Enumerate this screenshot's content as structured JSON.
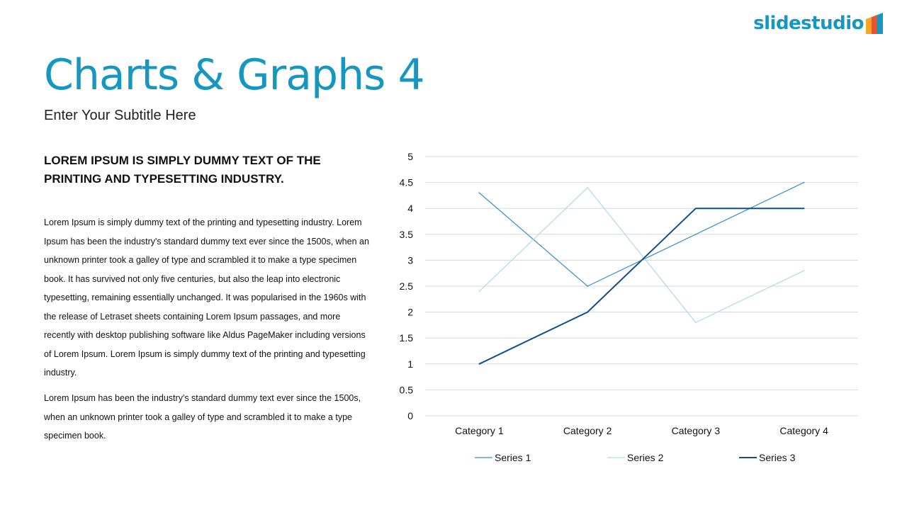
{
  "brand": {
    "name": "slidestudio",
    "color": "#1597c0"
  },
  "title": "Charts & Graphs 4",
  "subtitle": "Enter Your Subtitle Here",
  "heading": "LOREM IPSUM IS SIMPLY DUMMY TEXT OF THE PRINTING AND TYPESETTING INDUSTRY.",
  "paragraphs": [
    "Lorem Ipsum is simply dummy text of the printing and typesetting industry. Lorem Ipsum has been the industry's standard dummy text ever since the 1500s, when an unknown printer took a galley of type and scrambled it to make a type specimen book. It has survived not only five centuries, but also the leap into electronic typesetting, remaining essentially unchanged. It was popularised in the 1960s with the release of Letraset sheets containing Lorem Ipsum passages, and more recently with desktop publishing software like Aldus PageMaker including versions of Lorem Ipsum. Lorem Ipsum is simply dummy text of the printing and typesetting industry.",
    "Lorem Ipsum has been the industry's standard dummy text ever since the 1500s, when an unknown printer took a galley of type and scrambled it to make a type specimen book."
  ],
  "chart_data": {
    "type": "line",
    "title": "",
    "xlabel": "",
    "ylabel": "",
    "categories": [
      "Category 1",
      "Category 2",
      "Category 3",
      "Category 4"
    ],
    "ylim": [
      0,
      5
    ],
    "yticks": [
      "0",
      "0.5",
      "1",
      "1.5",
      "2",
      "2.5",
      "3",
      "3.5",
      "4",
      "4.5",
      "5"
    ],
    "grid": true,
    "legend": "bottom",
    "series": [
      {
        "name": "Series 1",
        "values": [
          4.3,
          2.5,
          3.5,
          4.5
        ],
        "color": "#3a8fc4"
      },
      {
        "name": "Series 2",
        "values": [
          2.4,
          4.4,
          1.8,
          2.8
        ],
        "color": "#a9dcec"
      },
      {
        "name": "Series 3",
        "values": [
          1,
          2,
          4,
          4
        ],
        "color": "#0f4f8a"
      }
    ]
  }
}
